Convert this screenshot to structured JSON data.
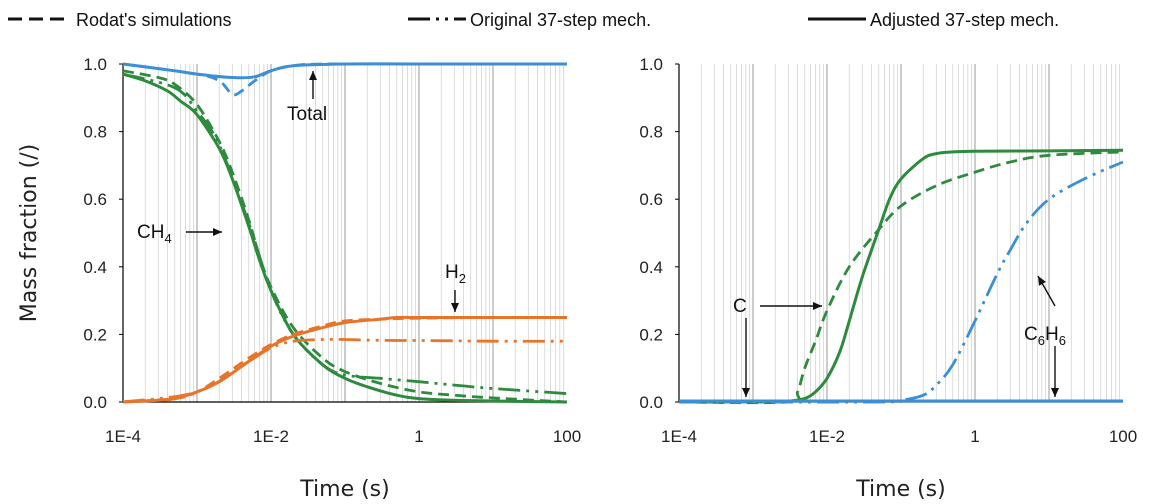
{
  "colors": {
    "methane": "#2e8b3e",
    "hydrogen": "#e8742a",
    "total": "#3a8fd6",
    "carbon": "#3a8fd6",
    "benzene": "#3a8fd6",
    "gridline": "#d4d4d4",
    "axis": "#000000"
  },
  "legend": {
    "entries": [
      {
        "label": "Rodat's simulations",
        "style": "dashed"
      },
      {
        "label": "Original 37-step mech.",
        "style": "dash-dot-dot"
      },
      {
        "label": "Adjusted 37-step mech.",
        "style": "solid"
      }
    ]
  },
  "chart_data": [
    {
      "type": "line",
      "x_scale": "log",
      "xlabel": "Time (s)",
      "ylabel": "Mass fraction (/)",
      "xlim": [
        0.0001,
        100
      ],
      "ylim": [
        0,
        1.0
      ],
      "x_tick_labels": [
        "1E-4",
        "1E-2",
        "1",
        "100"
      ],
      "y_tick_labels": [
        "0.0",
        "0.2",
        "0.4",
        "0.6",
        "0.8",
        "1.0"
      ],
      "grid": "vertical minor gridlines",
      "annotations": [
        {
          "text": "Total",
          "sub": ""
        },
        {
          "text": "CH",
          "sub": "4"
        },
        {
          "text": "H",
          "sub": "2"
        }
      ],
      "series": [
        {
          "species": "total",
          "style": "solid",
          "x": [
            0.0001,
            0.0005,
            0.001,
            0.003,
            0.006,
            0.01,
            0.02,
            0.1,
            1,
            100
          ],
          "y": [
            1.0,
            0.98,
            0.97,
            0.96,
            0.962,
            0.98,
            0.995,
            1.0,
            1.0,
            1.0
          ]
        },
        {
          "species": "total",
          "style": "dashed",
          "x": [
            0.0001,
            0.001,
            0.002,
            0.003,
            0.004,
            0.006,
            0.01,
            0.02,
            0.05,
            1,
            100
          ],
          "y": [
            1.0,
            0.97,
            0.95,
            0.91,
            0.92,
            0.95,
            0.98,
            0.995,
            1.0,
            1.0,
            1.0
          ]
        },
        {
          "species": "CH4",
          "style": "solid",
          "x": [
            0.0001,
            0.0002,
            0.0004,
            0.0006,
            0.001,
            0.002,
            0.003,
            0.005,
            0.007,
            0.01,
            0.02,
            0.05,
            0.1,
            0.2,
            0.5,
            1,
            3,
            10,
            100
          ],
          "y": [
            0.97,
            0.95,
            0.92,
            0.89,
            0.85,
            0.75,
            0.66,
            0.52,
            0.42,
            0.33,
            0.2,
            0.11,
            0.07,
            0.045,
            0.02,
            0.01,
            0.005,
            0.003,
            0.0
          ]
        },
        {
          "species": "CH4",
          "style": "dashed",
          "x": [
            0.0001,
            0.0003,
            0.0005,
            0.001,
            0.002,
            0.003,
            0.005,
            0.007,
            0.01,
            0.02,
            0.05,
            0.1,
            0.3,
            1,
            3,
            10,
            100
          ],
          "y": [
            0.98,
            0.96,
            0.94,
            0.88,
            0.77,
            0.68,
            0.54,
            0.43,
            0.34,
            0.22,
            0.13,
            0.09,
            0.055,
            0.03,
            0.02,
            0.012,
            0.0
          ]
        },
        {
          "species": "CH4",
          "style": "dash-dot-dot",
          "x": [
            0.0001,
            0.0005,
            0.001,
            0.002,
            0.005,
            0.01,
            0.02,
            0.05,
            0.1,
            0.3,
            1,
            3,
            10,
            100
          ],
          "y": [
            0.97,
            0.93,
            0.86,
            0.76,
            0.53,
            0.33,
            0.2,
            0.11,
            0.08,
            0.07,
            0.06,
            0.05,
            0.04,
            0.025
          ]
        },
        {
          "species": "H2",
          "style": "solid",
          "x": [
            0.0001,
            0.0003,
            0.0005,
            0.001,
            0.002,
            0.005,
            0.01,
            0.02,
            0.05,
            0.1,
            0.3,
            0.5,
            1,
            10,
            100
          ],
          "y": [
            0.0,
            0.005,
            0.01,
            0.03,
            0.06,
            0.12,
            0.165,
            0.195,
            0.22,
            0.235,
            0.245,
            0.25,
            0.25,
            0.25,
            0.25
          ]
        },
        {
          "species": "H2",
          "style": "dashed",
          "x": [
            0.0001,
            0.0005,
            0.001,
            0.002,
            0.005,
            0.01,
            0.02,
            0.05,
            0.1,
            0.3,
            1,
            10,
            100
          ],
          "y": [
            0.0,
            0.01,
            0.03,
            0.07,
            0.13,
            0.17,
            0.2,
            0.225,
            0.24,
            0.245,
            0.248,
            0.25,
            0.25
          ]
        },
        {
          "species": "H2",
          "style": "dash-dot-dot",
          "x": [
            0.0001,
            0.001,
            0.005,
            0.01,
            0.02,
            0.05,
            0.1,
            0.2,
            0.5,
            1,
            10,
            100
          ],
          "y": [
            0.0,
            0.03,
            0.12,
            0.16,
            0.18,
            0.185,
            0.185,
            0.183,
            0.182,
            0.182,
            0.18,
            0.18
          ]
        }
      ]
    },
    {
      "type": "line",
      "x_scale": "log",
      "xlabel": "Time (s)",
      "ylabel": "",
      "xlim": [
        0.0001,
        100
      ],
      "ylim": [
        0,
        1.0
      ],
      "x_tick_labels": [
        "1E-4",
        "1E-2",
        "1",
        "100"
      ],
      "y_tick_labels": [
        "0.0",
        "0.2",
        "0.4",
        "0.6",
        "0.8",
        "1.0"
      ],
      "grid": "vertical minor gridlines",
      "annotations": [
        {
          "text": "C",
          "sub": ""
        },
        {
          "text": "C",
          "sub": "6",
          "text2": "H",
          "sub2": "6"
        }
      ],
      "series": [
        {
          "species": "C",
          "style": "solid",
          "x": [
            0.0001,
            0.002,
            0.003,
            0.005,
            0.007,
            0.01,
            0.015,
            0.02,
            0.03,
            0.05,
            0.07,
            0.1,
            0.2,
            0.3,
            0.5,
            1,
            10,
            100
          ],
          "y": [
            0.0,
            0.0,
            0.002,
            0.01,
            0.03,
            0.07,
            0.15,
            0.24,
            0.37,
            0.51,
            0.6,
            0.66,
            0.72,
            0.735,
            0.74,
            0.742,
            0.743,
            0.745
          ]
        },
        {
          "species": "C",
          "style": "dashed",
          "x": [
            0.0001,
            0.003,
            0.004,
            0.005,
            0.007,
            0.01,
            0.02,
            0.05,
            0.1,
            0.3,
            1,
            3,
            10,
            100
          ],
          "y": [
            0.0,
            0.0,
            0.03,
            0.1,
            0.18,
            0.27,
            0.4,
            0.51,
            0.58,
            0.64,
            0.68,
            0.71,
            0.73,
            0.74
          ]
        },
        {
          "species": "C",
          "style": "dash-dot-dot",
          "x": [
            0.0001,
            0.05,
            0.2,
            1,
            10,
            100
          ],
          "y": [
            0.003,
            0.003,
            0.003,
            0.003,
            0.003,
            0.003
          ]
        },
        {
          "species": "C6H6",
          "style": "dash-dot-dot",
          "x": [
            0.0001,
            0.05,
            0.1,
            0.2,
            0.3,
            0.5,
            1,
            2,
            3,
            5,
            10,
            30,
            100
          ],
          "y": [
            0.0,
            0.0,
            0.005,
            0.02,
            0.05,
            0.11,
            0.24,
            0.38,
            0.45,
            0.53,
            0.6,
            0.66,
            0.71
          ]
        },
        {
          "species": "C6H6",
          "style": "solid",
          "x": [
            0.0001,
            1,
            100
          ],
          "y": [
            0.003,
            0.003,
            0.003
          ]
        }
      ]
    }
  ]
}
